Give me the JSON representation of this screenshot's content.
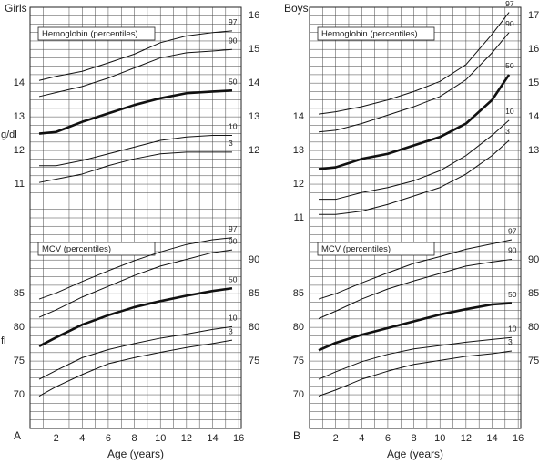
{
  "chart_data": [
    {
      "type": "line",
      "title": "Girls",
      "panel_label": "A",
      "xlabel": "Age (years)",
      "xlim": [
        0,
        16.2
      ],
      "xticks": [
        2,
        4,
        6,
        8,
        10,
        12,
        14,
        16
      ],
      "grid": true,
      "subplots": [
        {
          "title": "Hemoglobin (percentiles)",
          "ylabel": "g/dl",
          "ylim": [
            3.75,
            16.25
          ],
          "yticks": [
            11,
            12,
            13,
            14
          ],
          "y2lim": [
            3.75,
            16.25
          ],
          "y2ticks": [
            12,
            13,
            14,
            15,
            16
          ],
          "x": [
            0.7,
            2,
            4,
            6,
            8,
            10,
            12,
            14,
            15.5
          ],
          "series": [
            {
              "name": "97",
              "color": "#111111",
              "values": [
                14.08,
                14.2,
                14.35,
                14.6,
                14.86,
                15.2,
                15.4,
                15.5,
                15.55
              ]
            },
            {
              "name": "90",
              "color": "#111111",
              "values": [
                13.6,
                13.72,
                13.9,
                14.15,
                14.45,
                14.75,
                14.9,
                14.95,
                15.0
              ]
            },
            {
              "name": "50",
              "color": "#111111",
              "bold": true,
              "values": [
                12.5,
                12.55,
                12.85,
                13.1,
                13.35,
                13.55,
                13.7,
                13.75,
                13.78
              ]
            },
            {
              "name": "10",
              "color": "#111111",
              "values": [
                11.55,
                11.55,
                11.7,
                11.9,
                12.1,
                12.3,
                12.4,
                12.45,
                12.45
              ]
            },
            {
              "name": "3",
              "color": "#111111",
              "values": [
                11.05,
                11.15,
                11.3,
                11.55,
                11.75,
                11.9,
                11.95,
                11.95,
                11.95
              ]
            }
          ]
        },
        {
          "title": "MCV (percentiles)",
          "ylabel": "fl",
          "ylim": [
            65,
            127.5
          ],
          "yticks": [
            70,
            75,
            80,
            85
          ],
          "y2lim": [
            65,
            127.5
          ],
          "y2ticks": [
            75,
            80,
            85,
            90
          ],
          "x": [
            0.7,
            2,
            4,
            6,
            8,
            10,
            12,
            14,
            15.5
          ],
          "series": [
            {
              "name": "97",
              "color": "#111111",
              "values": [
                84.2,
                85.1,
                86.8,
                88.4,
                89.9,
                91.2,
                92.3,
                93.0,
                93.3
              ]
            },
            {
              "name": "90",
              "color": "#111111",
              "values": [
                81.5,
                82.6,
                84.5,
                86.1,
                87.7,
                89.1,
                90.1,
                91.1,
                91.5
              ]
            },
            {
              "name": "50",
              "color": "#111111",
              "bold": true,
              "values": [
                77.2,
                78.5,
                80.4,
                81.8,
                83.0,
                83.9,
                84.7,
                85.4,
                85.8
              ]
            },
            {
              "name": "10",
              "color": "#111111",
              "values": [
                72.3,
                73.6,
                75.5,
                76.7,
                77.6,
                78.4,
                79.0,
                79.7,
                80.1
              ]
            },
            {
              "name": "3",
              "color": "#111111",
              "values": [
                69.8,
                71.2,
                73.0,
                74.6,
                75.5,
                76.3,
                77.0,
                77.6,
                78.1
              ]
            }
          ]
        }
      ]
    },
    {
      "type": "line",
      "title": "Boys",
      "panel_label": "B",
      "xlabel": "Age (years)",
      "xlim": [
        0,
        16.2
      ],
      "xticks": [
        2,
        4,
        6,
        8,
        10,
        12,
        14,
        16
      ],
      "grid": true,
      "subplots": [
        {
          "title": "Hemoglobin (percentiles)",
          "ylim": [
            4.75,
            17.25
          ],
          "yticks": [
            11,
            12,
            13,
            14
          ],
          "y2lim": [
            4.75,
            17.25
          ],
          "y2ticks": [
            13,
            14,
            15,
            16,
            17
          ],
          "x": [
            0.7,
            2,
            4,
            6,
            8,
            10,
            12,
            14,
            15.3
          ],
          "series": [
            {
              "name": "97",
              "color": "#111111",
              "values": [
                14.08,
                14.15,
                14.3,
                14.5,
                14.75,
                15.05,
                15.55,
                16.45,
                17.1
              ]
            },
            {
              "name": "90",
              "color": "#111111",
              "values": [
                13.55,
                13.6,
                13.8,
                14.05,
                14.3,
                14.6,
                15.1,
                15.9,
                16.5
              ]
            },
            {
              "name": "50",
              "color": "#111111",
              "bold": true,
              "values": [
                12.45,
                12.5,
                12.75,
                12.9,
                13.15,
                13.4,
                13.8,
                14.5,
                15.25
              ]
            },
            {
              "name": "10",
              "color": "#111111",
              "values": [
                11.55,
                11.55,
                11.75,
                11.9,
                12.1,
                12.4,
                12.85,
                13.45,
                13.9
              ]
            },
            {
              "name": "3",
              "color": "#111111",
              "values": [
                11.1,
                11.1,
                11.2,
                11.4,
                11.65,
                11.9,
                12.3,
                12.85,
                13.3
              ]
            }
          ]
        },
        {
          "title": "MCV (percentiles)",
          "ylim": [
            65,
            127.5
          ],
          "yticks": [
            70,
            75,
            80,
            85
          ],
          "y2lim": [
            65,
            127.5
          ],
          "y2ticks": [
            75,
            80,
            85,
            90
          ],
          "x": [
            0.7,
            2,
            4,
            6,
            8,
            10,
            12,
            14,
            15.5
          ],
          "series": [
            {
              "name": "97",
              "color": "#111111",
              "values": [
                84.2,
                85.0,
                86.6,
                88.1,
                89.5,
                90.5,
                91.6,
                92.4,
                93.0
              ]
            },
            {
              "name": "90",
              "color": "#111111",
              "values": [
                81.3,
                82.4,
                84.2,
                85.7,
                86.9,
                88.0,
                89.1,
                89.7,
                90.1
              ]
            },
            {
              "name": "50",
              "color": "#111111",
              "bold": true,
              "values": [
                76.6,
                77.7,
                78.9,
                79.9,
                80.9,
                81.9,
                82.7,
                83.4,
                83.6
              ]
            },
            {
              "name": "10",
              "color": "#111111",
              "values": [
                72.3,
                73.4,
                74.9,
                76.0,
                76.8,
                77.3,
                77.8,
                78.2,
                78.5
              ]
            },
            {
              "name": "3",
              "color": "#111111",
              "values": [
                69.8,
                70.7,
                72.3,
                73.5,
                74.5,
                75.1,
                75.7,
                76.1,
                76.5
              ]
            }
          ]
        }
      ]
    }
  ]
}
